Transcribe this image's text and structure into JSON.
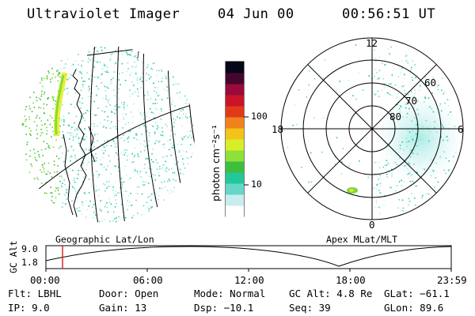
{
  "header": {
    "title": "Ultraviolet Imager",
    "date": "04 Jun 00",
    "time": "00:56:51 UT"
  },
  "colorbar": {
    "unit_label": "photon cm⁻²s⁻¹",
    "tick_100": "100",
    "tick_10": "10",
    "colors": [
      "#ffffff",
      "#c8ecf0",
      "#66d6c8",
      "#22c89a",
      "#3cbf3c",
      "#8ee03a",
      "#d8ee26",
      "#f4c21a",
      "#f0821c",
      "#e03a18",
      "#cc1428",
      "#9a0a3a",
      "#44062e",
      "#060618"
    ]
  },
  "left_panel": {
    "caption": "Geographic Lat/Lon"
  },
  "polar_plot": {
    "caption": "Apex MLat/MLT",
    "mlt_labels": {
      "top": "12",
      "left": "18",
      "right": "6",
      "bottom": "0"
    },
    "lat_labels": [
      "60",
      "70",
      "80"
    ]
  },
  "altitude_plot": {
    "label": "GC Alt",
    "y_ticks": [
      "9.0",
      "1.8"
    ],
    "x_ticks": [
      "00:00",
      "06:00",
      "12:00",
      "18:00",
      "23:59"
    ]
  },
  "status": {
    "flt": {
      "label": "Flt:",
      "value": "LBHL"
    },
    "ip": {
      "label": "IP:",
      "value": "9.0"
    },
    "door": {
      "label": "Door:",
      "value": "Open"
    },
    "gain": {
      "label": "Gain:",
      "value": "13"
    },
    "mode": {
      "label": "Mode:",
      "value": "Normal"
    },
    "dsp": {
      "label": "Dsp:",
      "value": "−10.1"
    },
    "gcalt": {
      "label": "GC Alt:",
      "value": "4.8 Re"
    },
    "seq": {
      "label": "Seq:",
      "value": "39"
    },
    "glat": {
      "label": "GLat:",
      "value": "−61.1"
    },
    "glon": {
      "label": "GLon:",
      "value": "89.6"
    }
  }
}
